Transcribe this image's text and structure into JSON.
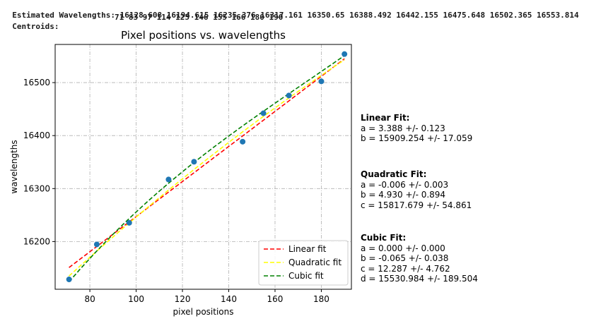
{
  "output": {
    "wavelengths_label": "Estimated Wavelengths:",
    "wavelengths_values": "16128.608 16194.615 16235.376 16317.161 16350.65 16388.492 16442.155 16475.648 16502.365 16553.814",
    "centroids_label": "Centroids:",
    "centroids_values": "71 83 97 114 125 146 155 166 180 190"
  },
  "fits": {
    "linear": {
      "title": "Linear Fit:",
      "lines": [
        "a = 3.388 +/- 0.123",
        "b = 15909.254 +/- 17.059"
      ]
    },
    "quadratic": {
      "title": "Quadratic Fit:",
      "lines": [
        "a = -0.006 +/- 0.003",
        "b = 4.930 +/- 0.894",
        "c = 15817.679 +/- 54.861"
      ]
    },
    "cubic": {
      "title": "Cubic Fit:",
      "lines": [
        "a = 0.000 +/- 0.000",
        "b = -0.065 +/- 0.038",
        "c = 12.287 +/- 4.762",
        "d = 15530.984 +/- 189.504"
      ]
    }
  },
  "chart_data": {
    "type": "scatter",
    "title": "Pixel positions vs. wavelengths",
    "xlabel": "pixel positions",
    "ylabel": "wavelengths",
    "xlim": [
      65,
      193
    ],
    "ylim": [
      16110,
      16572
    ],
    "xticks": [
      80,
      100,
      120,
      140,
      160,
      180
    ],
    "yticks": [
      16200,
      16300,
      16400,
      16500
    ],
    "grid": true,
    "legend_position": "lower-right",
    "points": {
      "x": [
        71,
        83,
        97,
        114,
        125,
        146,
        155,
        166,
        180,
        190
      ],
      "y": [
        16128.608,
        16194.615,
        16235.376,
        16317.161,
        16350.65,
        16388.492,
        16442.155,
        16475.648,
        16502.365,
        16553.814
      ],
      "color": "#1f77b4"
    },
    "series": [
      {
        "name": "Linear fit",
        "color": "#ff0000",
        "coeffs": [
          3.388,
          15909.254
        ]
      },
      {
        "name": "Quadratic fit",
        "color": "#ffff00",
        "coeffs": [
          -0.006,
          4.93,
          15817.679
        ]
      },
      {
        "name": "Cubic fit",
        "color": "#008000",
        "coeffs": [
          0.0,
          -0.065,
          12.287,
          15530.984
        ]
      }
    ]
  }
}
